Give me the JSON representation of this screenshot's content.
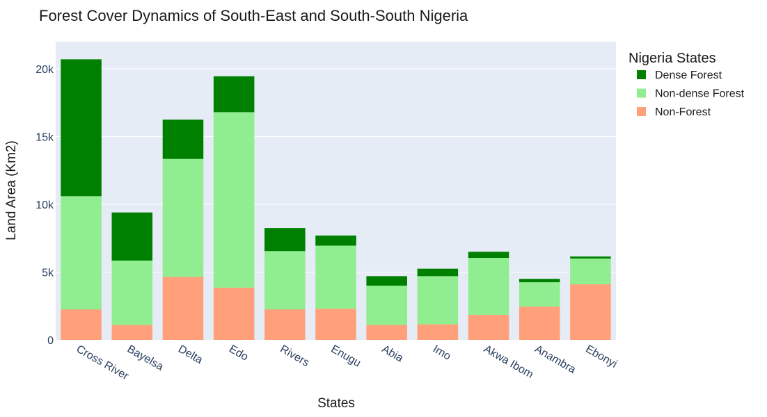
{
  "chart_data": {
    "type": "bar",
    "stacked": true,
    "title": "Forest Cover Dynamics of South-East and South-South Nigeria",
    "xlabel": "States",
    "ylabel": "Land Area (Km2)",
    "ylim": [
      0,
      22000
    ],
    "yticks": [
      0,
      5000,
      10000,
      15000,
      20000
    ],
    "ytick_labels": [
      "0",
      "5k",
      "10k",
      "15k",
      "20k"
    ],
    "grid": true,
    "legend_title": "Nigeria States",
    "legend_position": "top-right",
    "categories": [
      "Cross River",
      "Bayelsa",
      "Delta",
      "Edo",
      "Rivers",
      "Enugu",
      "Abia",
      "Imo",
      "Akwa Ibom",
      "Anambra",
      "Ebonyi"
    ],
    "series": [
      {
        "name": "Non-Forest",
        "color": "#FFA07A",
        "values": [
          2250,
          1100,
          4650,
          3850,
          2250,
          2300,
          1100,
          1150,
          1850,
          2450,
          4100
        ]
      },
      {
        "name": "Non-dense Forest",
        "color": "#90EE90",
        "values": [
          8350,
          4750,
          8700,
          12950,
          4300,
          4650,
          2900,
          3550,
          4200,
          1800,
          1900
        ]
      },
      {
        "name": "Dense Forest",
        "color": "#008000",
        "values": [
          10100,
          3550,
          2900,
          2650,
          1700,
          750,
          700,
          550,
          450,
          250,
          150
        ]
      }
    ],
    "legend_order": [
      "Dense Forest",
      "Non-dense Forest",
      "Non-Forest"
    ],
    "plot_bg": "#E5ECF6"
  }
}
